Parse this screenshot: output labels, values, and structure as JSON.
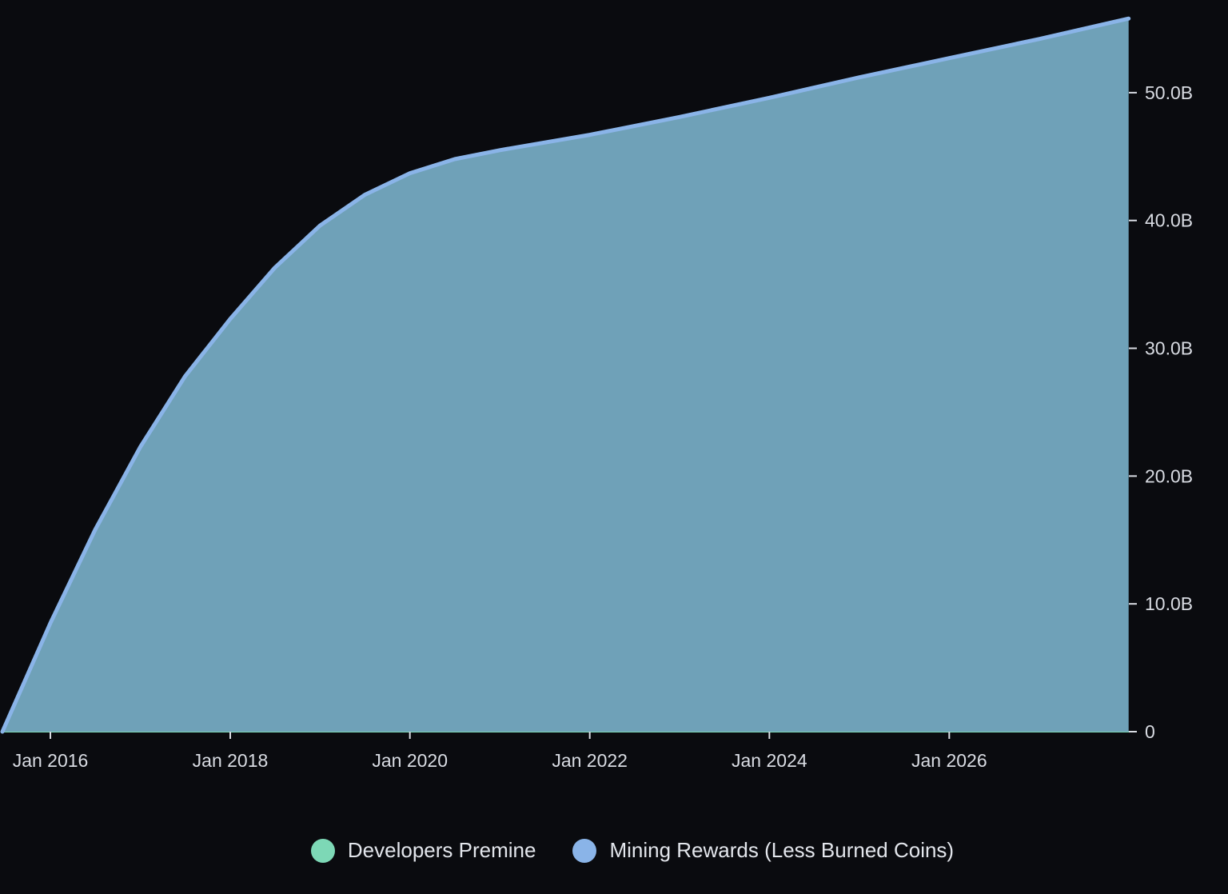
{
  "chart_data": {
    "type": "area",
    "title": "",
    "xlabel": "",
    "ylabel": "",
    "x_ticks": [
      "Jan 2016",
      "Jan 2018",
      "Jan 2020",
      "Jan 2022",
      "Jan 2024",
      "Jan 2026"
    ],
    "y_ticks": [
      "0",
      "10.0B",
      "20.0B",
      "30.0B",
      "40.0B",
      "50.0B"
    ],
    "xlim": [
      "2015-06-20",
      "2028-01-01"
    ],
    "ylim": [
      0,
      56000000000
    ],
    "grid": false,
    "legend_position": "bottom",
    "series": [
      {
        "name": "Developers Premine",
        "color": "#7dd8b6",
        "points": [
          [
            "2015-06-20",
            0
          ],
          [
            "2027-12-31",
            0
          ]
        ]
      },
      {
        "name": "Mining Rewards (Less Burned Coins)",
        "color": "#8ab4e8",
        "fill": "#6fa1b8",
        "points": [
          [
            "2015-06-20",
            0
          ],
          [
            "2016-01-01",
            8500000000
          ],
          [
            "2016-07-01",
            15800000000
          ],
          [
            "2017-01-01",
            22300000000
          ],
          [
            "2017-07-01",
            27800000000
          ],
          [
            "2018-01-01",
            32300000000
          ],
          [
            "2018-07-01",
            36300000000
          ],
          [
            "2019-01-01",
            39600000000
          ],
          [
            "2019-07-01",
            42000000000
          ],
          [
            "2020-01-01",
            43700000000
          ],
          [
            "2020-07-01",
            44800000000
          ],
          [
            "2021-01-01",
            45500000000
          ],
          [
            "2022-01-01",
            46700000000
          ],
          [
            "2023-01-01",
            48100000000
          ],
          [
            "2024-01-01",
            49600000000
          ],
          [
            "2025-01-01",
            51200000000
          ],
          [
            "2026-01-01",
            52700000000
          ],
          [
            "2027-01-01",
            54200000000
          ],
          [
            "2027-12-31",
            55800000000
          ]
        ]
      }
    ]
  },
  "legend": {
    "items": [
      {
        "label": "Developers Premine",
        "color": "#7dd8b6"
      },
      {
        "label": "Mining Rewards (Less Burned Coins)",
        "color": "#8ab4e8"
      }
    ]
  }
}
